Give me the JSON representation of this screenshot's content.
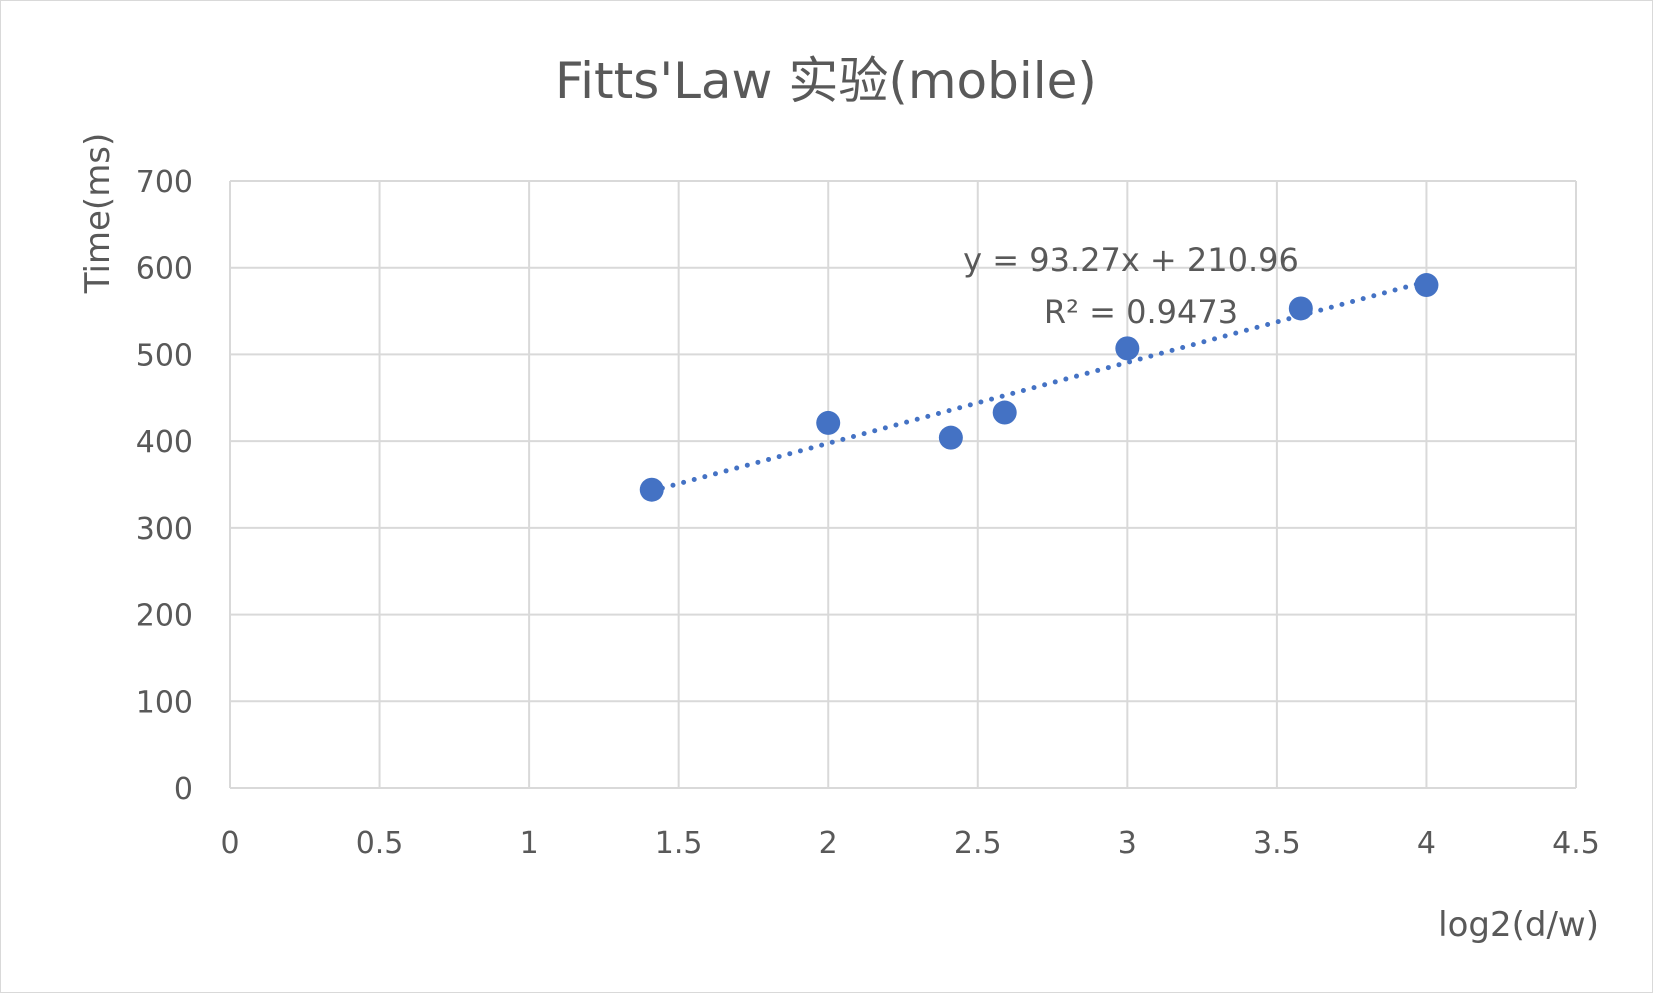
{
  "chart_data": {
    "type": "scatter",
    "title": "Fitts'Law 实验(mobile)",
    "xlabel": "log2(d/w)",
    "ylabel": "Time(ms)",
    "xlim": [
      0,
      4.5
    ],
    "ylim": [
      0,
      700
    ],
    "x_ticks": [
      "0",
      "0.5",
      "1",
      "1.5",
      "2",
      "2.5",
      "3",
      "3.5",
      "4",
      "4.5"
    ],
    "y_ticks": [
      "0",
      "100",
      "200",
      "300",
      "400",
      "500",
      "600",
      "700"
    ],
    "grid": true,
    "legend": "none",
    "series": [
      {
        "x": [
          1.41,
          2.0,
          2.41,
          2.59,
          3.0,
          3.58,
          4.0
        ],
        "y": [
          344,
          421,
          404,
          433,
          507,
          553,
          580
        ],
        "color": "#4472C4"
      }
    ],
    "trendline": {
      "type": "linear",
      "style": "dotted",
      "color": "#4472C4",
      "slope": 93.27,
      "intercept": 210.96,
      "x_range": [
        1.41,
        4.0
      ],
      "equation_label": "y = 93.27x + 210.96",
      "r2_label": "R² = 0.9473"
    }
  }
}
